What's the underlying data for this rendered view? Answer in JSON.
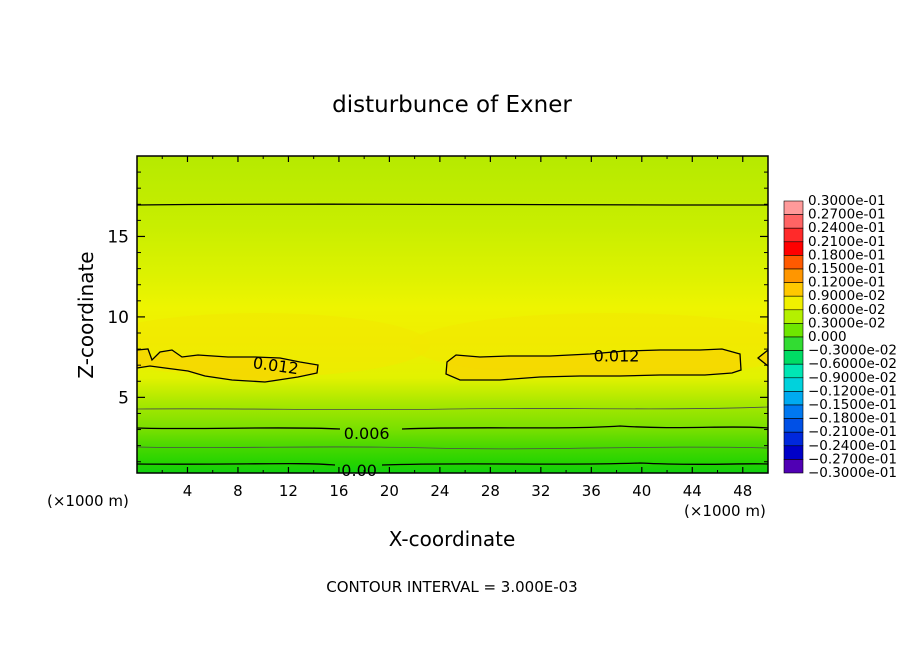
{
  "chart_data": {
    "type": "contour",
    "title": "disturbunce of Exner",
    "xlabel": "X-coordinate",
    "ylabel": "Z-coordinate",
    "x_unit_left": "(×1000 m)",
    "x_unit_right": "(×1000 m)",
    "xlim": [
      0,
      50
    ],
    "ylim": [
      0.3,
      20
    ],
    "x_ticks": [
      4,
      8,
      12,
      16,
      20,
      24,
      28,
      32,
      36,
      40,
      44,
      48
    ],
    "y_ticks": [
      5,
      10,
      15
    ],
    "footer": "CONTOUR INTERVAL = 3.000E-03",
    "contour_labels": [
      {
        "text": "0.012",
        "x": 11,
        "z": 7.0
      },
      {
        "text": "0.012",
        "x": 38,
        "z": 7.6
      },
      {
        "text": "0.006",
        "x": 18.2,
        "z": 2.8
      },
      {
        "text": "0.00",
        "x": 17.6,
        "z": 0.5
      }
    ],
    "colorbar": {
      "labels": [
        "0.3000e-01",
        "0.2700e-01",
        "0.2400e-01",
        "0.2100e-01",
        "0.1800e-01",
        "0.1500e-01",
        "0.1200e-01",
        "0.9000e-02",
        "0.6000e-02",
        "0.3000e-02",
        "0.000",
        "−0.3000e-02",
        "−0.6000e-02",
        "−0.9000e-02",
        "−0.1200e-01",
        "−0.1500e-01",
        "−0.1800e-01",
        "−0.2100e-01",
        "−0.2400e-01",
        "−0.2700e-01",
        "−0.3000e-01"
      ],
      "colors": [
        "#ff9a9a",
        "#ff6464",
        "#ff2a2a",
        "#ff0000",
        "#ff5a00",
        "#ff9600",
        "#ffc800",
        "#f0f000",
        "#b4f000",
        "#6ee600",
        "#32dc32",
        "#00dc64",
        "#00e6b4",
        "#00d2dc",
        "#00aaf0",
        "#0078f0",
        "#0050e6",
        "#0028dc",
        "#0000c8",
        "#5000b4"
      ]
    }
  }
}
